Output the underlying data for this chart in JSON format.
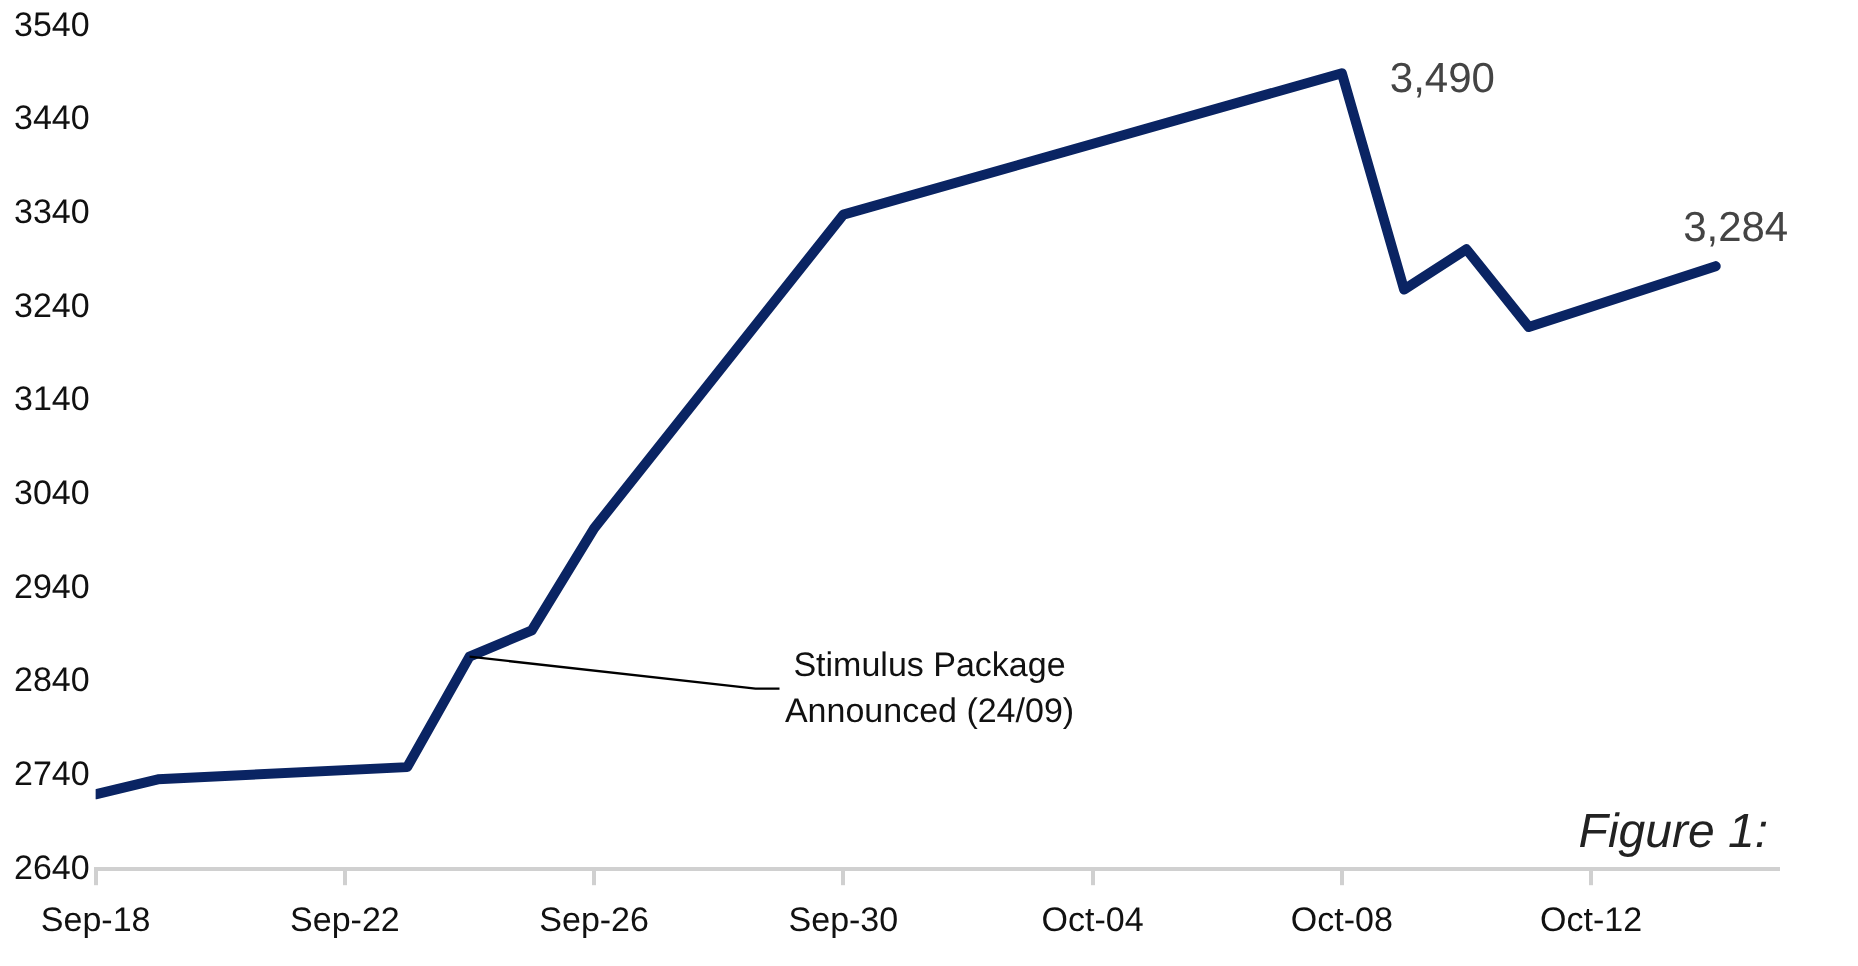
{
  "chart_data": {
    "type": "line",
    "x": [
      "--09-18",
      "--09-19",
      "--09-23",
      "--09-24",
      "--09-25",
      "--09-26",
      "--09-30",
      "--10-08",
      "--10-09",
      "--10-10",
      "--10-11",
      "--10-14"
    ],
    "series": [
      {
        "color": "#0a2463",
        "values": [
          2720,
          2736,
          2749,
          2867,
          2895,
          3004,
          3339,
          3490,
          3259,
          3302,
          3219,
          3284
        ]
      }
    ],
    "xlim": [
      "--09-18",
      "--10-15"
    ],
    "xticks": [
      {
        "value": "--09-18",
        "label": "Sep-18"
      },
      {
        "value": "--09-22",
        "label": "Sep-22"
      },
      {
        "value": "--09-26",
        "label": "Sep-26"
      },
      {
        "value": "--09-30",
        "label": "Sep-30"
      },
      {
        "value": "--10-04",
        "label": "Oct-04"
      },
      {
        "value": "--10-08",
        "label": "Oct-08"
      },
      {
        "value": "--10-12",
        "label": "Oct-12"
      }
    ],
    "ylim": [
      2640,
      3540
    ],
    "yticks": [
      2640,
      2740,
      2840,
      2940,
      3040,
      3140,
      3240,
      3340,
      3440,
      3540
    ],
    "grid": false,
    "legend": false,
    "marker": "none",
    "line_style": "solid",
    "annotations": [
      {
        "text": "3,490",
        "x": "--10-08",
        "y": 3490
      },
      {
        "text": "3,284",
        "x": "--10-14",
        "y": 3284
      },
      {
        "text": "Stimulus Package Announced (24/09)",
        "x": "--09-24",
        "y": 2867
      },
      "Figure 1:"
    ]
  }
}
